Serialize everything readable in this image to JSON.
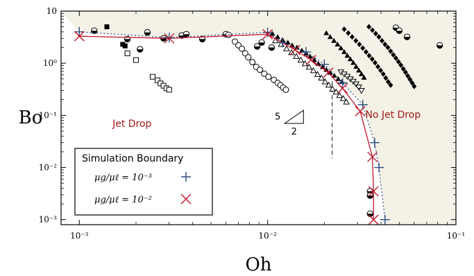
{
  "chart_data": {
    "type": "scatter",
    "xscale": "log",
    "yscale": "log",
    "xlabel": "Oh",
    "ylabel": "Bo",
    "xlim": [
      0.0008,
      0.1
    ],
    "ylim": [
      0.0008,
      10
    ],
    "x_ticks": [
      {
        "value": 0.001,
        "label": "10⁻³"
      },
      {
        "value": 0.01,
        "label": "10⁻²"
      },
      {
        "value": 0.1,
        "label": "10⁻¹"
      }
    ],
    "y_ticks": [
      {
        "value": 0.001,
        "label": "10⁻³"
      },
      {
        "value": 0.01,
        "label": "10⁻²"
      },
      {
        "value": 0.1,
        "label": "10⁻¹"
      },
      {
        "value": 1,
        "label": "10⁰"
      },
      {
        "value": 10,
        "label": "10"
      }
    ],
    "annotations": {
      "jet_drop": "Jet Drop",
      "no_jet_drop": "No Jet Drop",
      "slope_vertical": "5",
      "slope_horizontal": "2"
    },
    "legend": {
      "title": "Simulation Boundary",
      "entries": [
        {
          "label": "μg/μℓ = 10⁻³",
          "marker": "plus",
          "color": "#2a4a7f"
        },
        {
          "label": "μg/μℓ = 10⁻²",
          "marker": "x",
          "color": "#c0152a"
        }
      ]
    },
    "colors": {
      "shade": "#f4f1e6",
      "red": "#c0152a",
      "blue": "#2a4a7f"
    },
    "series": [
      {
        "marker": "plus",
        "line": "dotted",
        "points": [
          [
            0.001,
            4.0
          ],
          [
            0.003,
            3.1
          ],
          [
            0.01,
            3.9
          ],
          [
            0.012,
            2.5
          ],
          [
            0.016,
            1.65
          ],
          [
            0.02,
            0.95
          ],
          [
            0.025,
            0.42
          ],
          [
            0.032,
            0.16
          ],
          [
            0.037,
            0.03
          ],
          [
            0.039,
            0.01
          ],
          [
            0.042,
            0.001
          ]
        ]
      },
      {
        "marker": "x",
        "line": "solid",
        "points": [
          [
            0.001,
            3.3
          ],
          [
            0.003,
            3.0
          ],
          [
            0.01,
            3.6
          ],
          [
            0.014,
            1.8
          ],
          [
            0.017,
            1.15
          ],
          [
            0.021,
            0.66
          ],
          [
            0.025,
            0.33
          ],
          [
            0.031,
            0.12
          ],
          [
            0.036,
            0.016
          ],
          [
            0.0365,
            0.0035
          ],
          [
            0.0365,
            0.001
          ]
        ]
      },
      {
        "name": "",
        "marker": "half-circle",
        "points": [
          [
            0.0012,
            4.2
          ],
          [
            0.0018,
            2.9
          ],
          [
            0.0021,
            1.85
          ],
          [
            0.0023,
            3.9
          ],
          [
            0.0028,
            3.0
          ],
          [
            0.0035,
            3.4
          ],
          [
            0.0037,
            3.6
          ],
          [
            0.0045,
            2.9
          ],
          [
            0.006,
            3.6
          ],
          [
            0.0088,
            2.1
          ],
          [
            0.0093,
            2.5
          ],
          [
            0.0105,
            2.0
          ],
          [
            0.035,
            0.0035
          ],
          [
            0.035,
            0.0029
          ],
          [
            0.035,
            0.0013
          ],
          [
            0.048,
            4.8
          ],
          [
            0.05,
            4.2
          ],
          [
            0.055,
            3.2
          ],
          [
            0.082,
            2.2
          ]
        ]
      },
      {
        "marker": "square-filled",
        "points": [
          [
            0.0014,
            5.0
          ],
          [
            0.0017,
            2.3
          ],
          [
            0.00175,
            2.15
          ]
        ]
      },
      {
        "marker": "square-open",
        "points": [
          [
            0.0018,
            1.55
          ],
          [
            0.002,
            1.15
          ],
          [
            0.00245,
            0.55
          ],
          [
            0.0026,
            0.47
          ],
          [
            0.0027,
            0.41
          ],
          [
            0.0028,
            0.37
          ],
          [
            0.0029,
            0.33
          ],
          [
            0.003,
            0.31
          ]
        ]
      },
      {
        "marker": "circle-open",
        "points": [
          [
            0.0062,
            3.5
          ],
          [
            0.0067,
            2.6
          ],
          [
            0.007,
            2.2
          ],
          [
            0.0073,
            1.9
          ],
          [
            0.0076,
            1.55
          ],
          [
            0.0079,
            1.3
          ],
          [
            0.0083,
            1.05
          ],
          [
            0.0087,
            0.85
          ],
          [
            0.0091,
            0.75
          ],
          [
            0.0096,
            0.63
          ],
          [
            0.0101,
            0.55
          ],
          [
            0.0108,
            0.48
          ],
          [
            0.0113,
            0.42
          ],
          [
            0.0117,
            0.38
          ],
          [
            0.0121,
            0.34
          ],
          [
            0.0125,
            0.31
          ]
        ]
      },
      {
        "marker": "triangle-filled",
        "points": [
          [
            0.0106,
            3.7
          ],
          [
            0.0113,
            3.2
          ],
          [
            0.012,
            2.8
          ],
          [
            0.0128,
            2.5
          ],
          [
            0.0135,
            2.2
          ],
          [
            0.0143,
            2.0
          ],
          [
            0.0152,
            1.75
          ],
          [
            0.016,
            1.55
          ],
          [
            0.0168,
            1.35
          ],
          [
            0.0177,
            1.15
          ],
          [
            0.0186,
            0.98
          ],
          [
            0.0196,
            0.85
          ],
          [
            0.0205,
            0.75
          ],
          [
            0.0215,
            0.66
          ],
          [
            0.0226,
            0.58
          ],
          [
            0.0237,
            0.5
          ],
          [
            0.0248,
            0.44
          ]
        ]
      },
      {
        "marker": "triangle-open",
        "points": [
          [
            0.011,
            2.7
          ],
          [
            0.0118,
            2.3
          ],
          [
            0.0126,
            1.9
          ],
          [
            0.0134,
            1.6
          ],
          [
            0.0142,
            1.35
          ],
          [
            0.015,
            1.15
          ],
          [
            0.0158,
            0.98
          ],
          [
            0.0166,
            0.84
          ],
          [
            0.0175,
            0.72
          ],
          [
            0.0184,
            0.61
          ],
          [
            0.0193,
            0.52
          ],
          [
            0.0202,
            0.44
          ],
          [
            0.0211,
            0.38
          ],
          [
            0.0221,
            0.32
          ],
          [
            0.0231,
            0.28
          ],
          [
            0.0241,
            0.24
          ],
          [
            0.0252,
            0.21
          ],
          [
            0.0262,
            0.18
          ]
        ]
      },
      {
        "marker": "triangle-down-open",
        "points": [
          [
            0.0245,
            0.68
          ],
          [
            0.0255,
            0.62
          ],
          [
            0.0265,
            0.56
          ],
          [
            0.0275,
            0.5
          ],
          [
            0.0285,
            0.45
          ],
          [
            0.0295,
            0.4
          ],
          [
            0.0305,
            0.35
          ],
          [
            0.0315,
            0.3
          ]
        ]
      },
      {
        "marker": "triangle-up-filled",
        "points": [
          [
            0.0205,
            3.8
          ],
          [
            0.0215,
            3.2
          ],
          [
            0.0225,
            2.7
          ],
          [
            0.0235,
            2.3
          ],
          [
            0.0245,
            1.95
          ],
          [
            0.0255,
            1.65
          ],
          [
            0.0265,
            1.4
          ],
          [
            0.0275,
            1.2
          ],
          [
            0.0285,
            1.02
          ],
          [
            0.0295,
            0.86
          ],
          [
            0.0305,
            0.73
          ],
          [
            0.0315,
            0.62
          ],
          [
            0.0325,
            0.53
          ]
        ]
      },
      {
        "marker": "diamond-filled",
        "points": [
          [
            0.0255,
            4.5
          ],
          [
            0.0268,
            3.8
          ],
          [
            0.0281,
            3.2
          ],
          [
            0.0294,
            2.7
          ],
          [
            0.0307,
            2.3
          ],
          [
            0.032,
            1.95
          ],
          [
            0.0333,
            1.65
          ],
          [
            0.0346,
            1.4
          ],
          [
            0.0359,
            1.2
          ],
          [
            0.0372,
            1.02
          ],
          [
            0.0385,
            0.86
          ],
          [
            0.0398,
            0.73
          ],
          [
            0.0411,
            0.62
          ],
          [
            0.0424,
            0.52
          ],
          [
            0.0437,
            0.44
          ],
          [
            0.045,
            0.38
          ]
        ]
      },
      {
        "marker": "diamond-filled",
        "points": [
          [
            0.0345,
            5.0
          ],
          [
            0.036,
            4.3
          ],
          [
            0.0375,
            3.7
          ],
          [
            0.039,
            3.2
          ],
          [
            0.0405,
            2.7
          ],
          [
            0.042,
            2.3
          ],
          [
            0.0435,
            2.0
          ],
          [
            0.045,
            1.7
          ],
          [
            0.0465,
            1.45
          ],
          [
            0.048,
            1.25
          ],
          [
            0.0495,
            1.07
          ],
          [
            0.051,
            0.92
          ],
          [
            0.0525,
            0.78
          ],
          [
            0.054,
            0.67
          ],
          [
            0.0555,
            0.57
          ],
          [
            0.057,
            0.49
          ],
          [
            0.0585,
            0.42
          ],
          [
            0.06,
            0.36
          ]
        ]
      }
    ],
    "vertical_dashed_line": {
      "x": 0.022,
      "y_range": [
        0.015,
        0.45
      ]
    },
    "shaded_region": "no-jet-drop"
  }
}
